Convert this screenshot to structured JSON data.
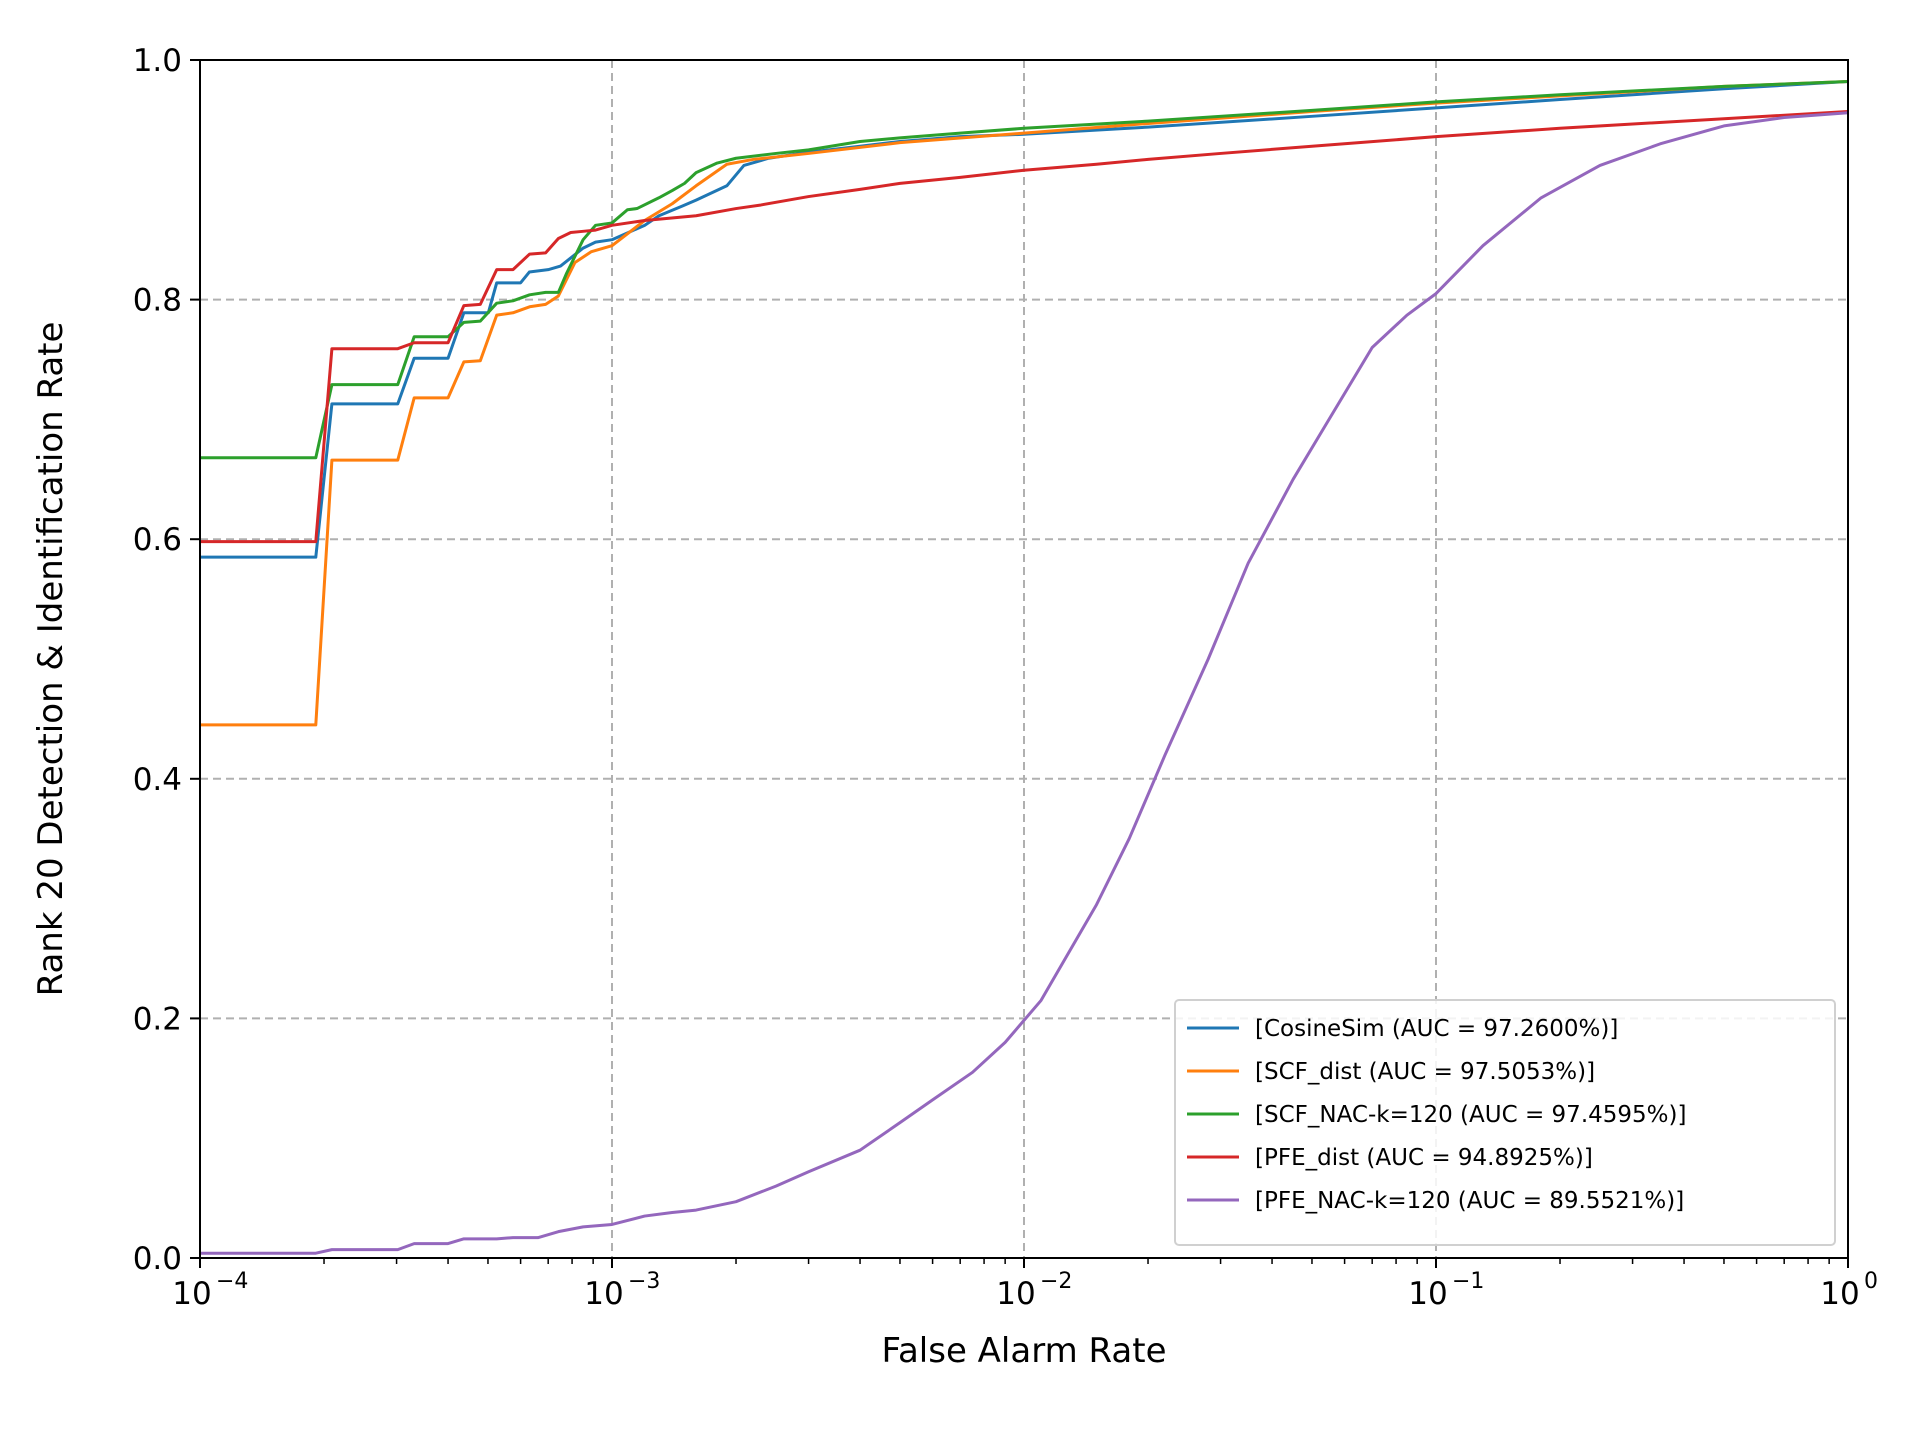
{
  "chart_data": {
    "type": "line",
    "title": "",
    "xlabel": "False Alarm Rate",
    "ylabel": "Rank 20 Detection & Identification Rate",
    "xscale": "log",
    "xlim": [
      0.0001,
      1
    ],
    "ylim": [
      0,
      1
    ],
    "grid": true,
    "grid_style": "dashed",
    "legend_position": "lower-right",
    "x_ticks": [
      {
        "value": 0.0001,
        "base": "10",
        "exp": "−4"
      },
      {
        "value": 0.001,
        "base": "10",
        "exp": "−3"
      },
      {
        "value": 0.01,
        "base": "10",
        "exp": "−2"
      },
      {
        "value": 0.1,
        "base": "10",
        "exp": "−1"
      },
      {
        "value": 1,
        "base": "10",
        "exp": "0"
      }
    ],
    "y_ticks": [
      {
        "value": 0.0,
        "label": "0.0"
      },
      {
        "value": 0.2,
        "label": "0.2"
      },
      {
        "value": 0.4,
        "label": "0.4"
      },
      {
        "value": 0.6,
        "label": "0.6"
      },
      {
        "value": 0.8,
        "label": "0.8"
      },
      {
        "value": 1.0,
        "label": "1.0"
      }
    ],
    "series": [
      {
        "name": "[CosineSim (AUC = 97.2600%)]",
        "color": "#1f77b4",
        "x": [
          0.0001,
          0.000191,
          0.000209,
          0.000302,
          0.000331,
          0.0004,
          0.000437,
          0.000501,
          0.000525,
          0.0006,
          0.00063,
          0.0007,
          0.00075,
          0.000851,
          0.000912,
          0.001,
          0.0012,
          0.0013,
          0.00148,
          0.0016,
          0.0019,
          0.00209,
          0.0024,
          0.003,
          0.004,
          0.005,
          0.007,
          0.01,
          0.02,
          0.05,
          0.1,
          0.2,
          0.5,
          1
        ],
        "y": [
          0.585,
          0.585,
          0.713,
          0.713,
          0.751,
          0.751,
          0.789,
          0.789,
          0.814,
          0.814,
          0.823,
          0.825,
          0.828,
          0.843,
          0.848,
          0.85,
          0.862,
          0.87,
          0.878,
          0.883,
          0.895,
          0.912,
          0.918,
          0.923,
          0.928,
          0.932,
          0.936,
          0.938,
          0.944,
          0.953,
          0.96,
          0.967,
          0.976,
          0.982
        ]
      },
      {
        "name": "[SCF_dist (AUC = 97.5053%)]",
        "color": "#ff7f0e",
        "x": [
          0.0001,
          0.000191,
          0.000209,
          0.000302,
          0.000331,
          0.0004,
          0.000437,
          0.000479,
          0.000525,
          0.000575,
          0.000631,
          0.00069,
          0.000741,
          0.000813,
          0.000891,
          0.001,
          0.0012,
          0.0014,
          0.0016,
          0.0019,
          0.0022,
          0.003,
          0.005,
          0.01,
          0.02,
          0.05,
          0.1,
          0.2,
          0.5,
          1
        ],
        "y": [
          0.445,
          0.445,
          0.666,
          0.666,
          0.718,
          0.718,
          0.748,
          0.749,
          0.787,
          0.789,
          0.794,
          0.796,
          0.803,
          0.831,
          0.84,
          0.845,
          0.866,
          0.88,
          0.895,
          0.913,
          0.917,
          0.922,
          0.931,
          0.939,
          0.947,
          0.957,
          0.964,
          0.97,
          0.978,
          0.982
        ]
      },
      {
        "name": "[SCF_NAC-k=120 (AUC = 97.4595%)]",
        "color": "#2ca02c",
        "x": [
          0.0001,
          0.000191,
          0.000209,
          0.000302,
          0.000331,
          0.0004,
          0.000437,
          0.000479,
          0.000525,
          0.000575,
          0.000631,
          0.00069,
          0.000741,
          0.000776,
          0.000851,
          0.000912,
          0.001,
          0.00109,
          0.00115,
          0.0013,
          0.0014,
          0.0015,
          0.0016,
          0.0018,
          0.002,
          0.0025,
          0.003,
          0.004,
          0.005,
          0.007,
          0.01,
          0.02,
          0.05,
          0.1,
          0.2,
          0.5,
          1
        ],
        "y": [
          0.668,
          0.668,
          0.729,
          0.729,
          0.769,
          0.769,
          0.781,
          0.782,
          0.797,
          0.799,
          0.804,
          0.806,
          0.806,
          0.822,
          0.85,
          0.862,
          0.864,
          0.875,
          0.876,
          0.885,
          0.891,
          0.897,
          0.906,
          0.914,
          0.918,
          0.922,
          0.925,
          0.932,
          0.935,
          0.939,
          0.943,
          0.949,
          0.958,
          0.965,
          0.971,
          0.978,
          0.982
        ]
      },
      {
        "name": "[PFE_dist (AUC = 94.8925%)]",
        "color": "#d62728",
        "x": [
          0.0001,
          0.000191,
          0.000209,
          0.000302,
          0.000331,
          0.0004,
          0.000437,
          0.000479,
          0.000525,
          0.000575,
          0.000631,
          0.00069,
          0.000741,
          0.000794,
          0.000851,
          0.000912,
          0.001,
          0.0012,
          0.0016,
          0.002,
          0.0023,
          0.003,
          0.004,
          0.005,
          0.007,
          0.01,
          0.015,
          0.02,
          0.03,
          0.05,
          0.1,
          0.2,
          0.5,
          1
        ],
        "y": [
          0.598,
          0.598,
          0.759,
          0.759,
          0.764,
          0.764,
          0.795,
          0.796,
          0.825,
          0.825,
          0.838,
          0.839,
          0.851,
          0.856,
          0.857,
          0.858,
          0.862,
          0.866,
          0.87,
          0.876,
          0.879,
          0.886,
          0.892,
          0.897,
          0.902,
          0.908,
          0.913,
          0.917,
          0.922,
          0.928,
          0.936,
          0.943,
          0.951,
          0.957
        ]
      },
      {
        "name": "[PFE_NAC-k=120 (AUC = 89.5521%)]",
        "color": "#9467bd",
        "x": [
          0.0001,
          0.000191,
          0.000209,
          0.000302,
          0.000331,
          0.0004,
          0.000437,
          0.000525,
          0.000575,
          0.000661,
          0.000741,
          0.000851,
          0.001,
          0.0012,
          0.0014,
          0.0016,
          0.002,
          0.0025,
          0.003,
          0.004,
          0.005,
          0.006,
          0.0075,
          0.009,
          0.011,
          0.0125,
          0.015,
          0.018,
          0.022,
          0.028,
          0.035,
          0.045,
          0.055,
          0.07,
          0.085,
          0.1,
          0.13,
          0.18,
          0.25,
          0.35,
          0.5,
          0.7,
          1
        ],
        "y": [
          0.004,
          0.004,
          0.007,
          0.007,
          0.012,
          0.012,
          0.016,
          0.016,
          0.017,
          0.017,
          0.022,
          0.026,
          0.028,
          0.035,
          0.038,
          0.04,
          0.047,
          0.06,
          0.072,
          0.09,
          0.113,
          0.132,
          0.155,
          0.18,
          0.215,
          0.248,
          0.295,
          0.35,
          0.42,
          0.5,
          0.58,
          0.65,
          0.7,
          0.76,
          0.787,
          0.805,
          0.845,
          0.885,
          0.912,
          0.93,
          0.945,
          0.952,
          0.956
        ]
      }
    ]
  }
}
